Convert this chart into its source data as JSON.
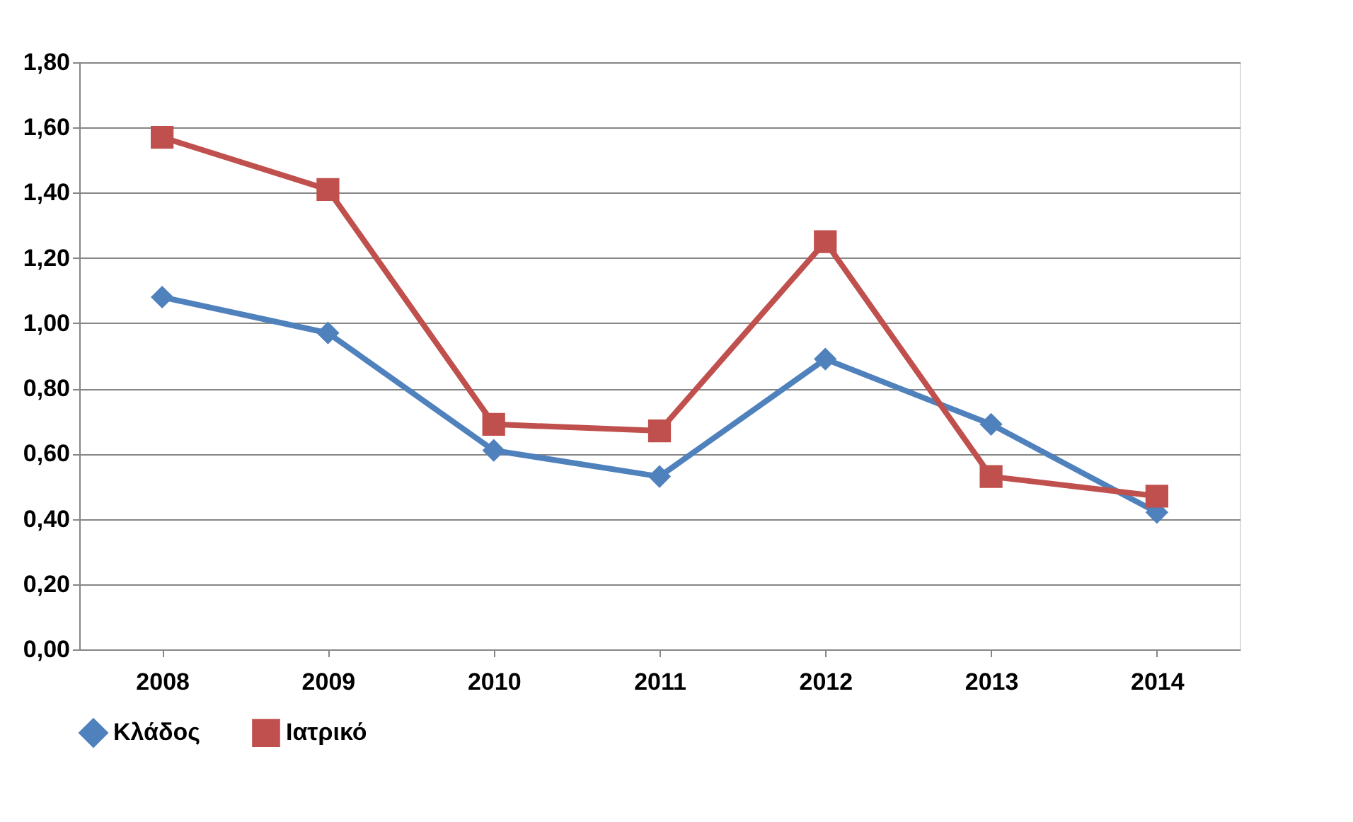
{
  "chart_data": {
    "type": "line",
    "categories": [
      "2008",
      "2009",
      "2010",
      "2011",
      "2012",
      "2013",
      "2014"
    ],
    "series": [
      {
        "name": "Κλάδος",
        "color": "#4f81bd",
        "marker": "diamond",
        "values": [
          1.08,
          0.97,
          0.61,
          0.53,
          0.89,
          0.69,
          0.42
        ]
      },
      {
        "name": "Ιατρικό",
        "color": "#c0504d",
        "marker": "square",
        "values": [
          1.57,
          1.41,
          0.69,
          0.67,
          1.25,
          0.53,
          0.47
        ]
      }
    ],
    "ylim": [
      0,
      1.8
    ],
    "yticks": [
      {
        "value": 0,
        "label": "0,00"
      },
      {
        "value": 0.2,
        "label": "0,20"
      },
      {
        "value": 0.4,
        "label": "0,40"
      },
      {
        "value": 0.6,
        "label": "0,60"
      },
      {
        "value": 0.8,
        "label": "0,80"
      },
      {
        "value": 1.0,
        "label": "1,00"
      },
      {
        "value": 1.2,
        "label": "1,20"
      },
      {
        "value": 1.4,
        "label": "1,40"
      },
      {
        "value": 1.6,
        "label": "1,60"
      },
      {
        "value": 1.8,
        "label": "1,80"
      }
    ],
    "grid": "y",
    "legend": "bottom",
    "line_style": "solid"
  }
}
